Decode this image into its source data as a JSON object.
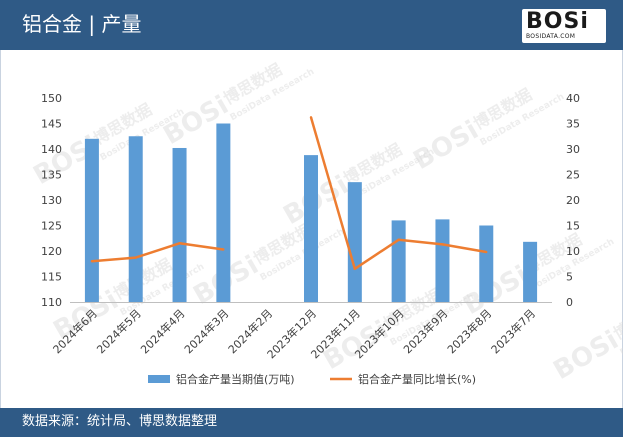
{
  "header": {
    "title": "铝合金 | 产量",
    "logo_text": "BOSi",
    "logo_sub": "BOSIDATA.COM"
  },
  "footer": {
    "source": "数据来源：统计局、博思数据整理"
  },
  "watermark": {
    "brand": "BOSi",
    "cn": "博思数据",
    "en": "BosiData Research"
  },
  "colors": {
    "bar": "#5b9bd5",
    "line": "#ed7d31",
    "header": "#2f5a86"
  },
  "chart_data": {
    "type": "bar",
    "categories": [
      "2024年6月",
      "2024年5月",
      "2024年4月",
      "2024年3月",
      "2024年2月",
      "2023年12月",
      "2023年11月",
      "2023年10月",
      "2023年9月",
      "2023年8月",
      "2023年7月"
    ],
    "series": [
      {
        "name": "铝合金产量当期值(万吨)",
        "type": "bar",
        "axis": "left",
        "values": [
          142,
          142.5,
          140.2,
          145,
          null,
          138.8,
          133.5,
          126,
          126.2,
          125,
          121.8
        ]
      },
      {
        "name": "铝合金产量同比增长(%)",
        "type": "line",
        "axis": "right",
        "values": [
          8,
          8.7,
          11.5,
          10.3,
          null,
          36.2,
          6.5,
          12.2,
          11.3,
          9.8,
          null
        ]
      }
    ],
    "y_left": {
      "min": 110,
      "max": 150,
      "step": 5
    },
    "y_right": {
      "min": 0,
      "max": 40,
      "step": 5
    },
    "legend_position": "bottom",
    "grid": false
  }
}
